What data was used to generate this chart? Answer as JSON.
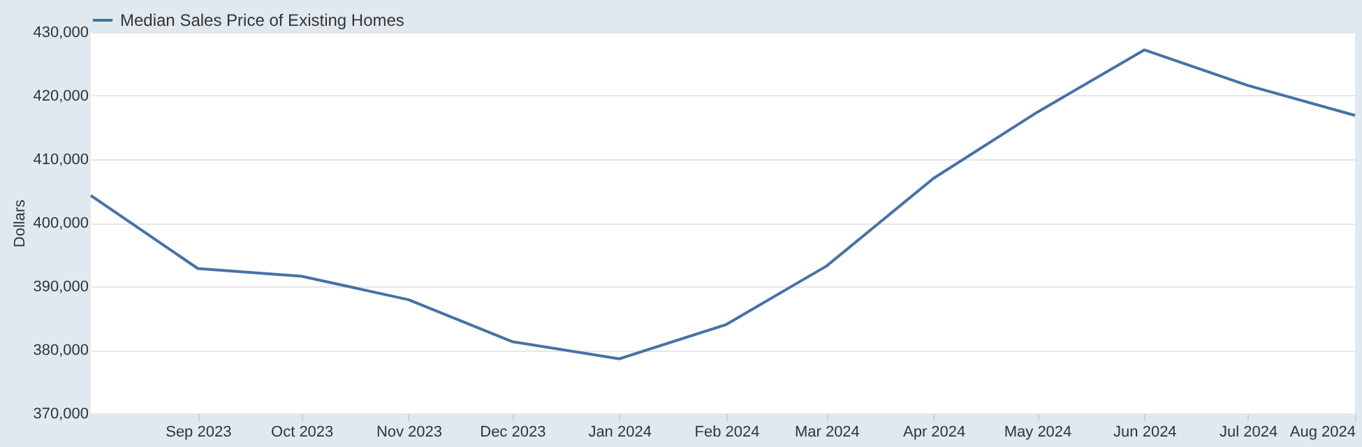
{
  "chart_data": {
    "type": "line",
    "ylabel": "Dollars",
    "x": [
      "2023-08-01",
      "2023-09-01",
      "2023-10-01",
      "2023-11-01",
      "2023-12-01",
      "2024-01-01",
      "2024-02-01",
      "2024-03-01",
      "2024-04-01",
      "2024-05-01",
      "2024-06-01",
      "2024-07-01",
      "2024-08-01"
    ],
    "series": [
      {
        "name": "Median Sales Price of Existing Homes",
        "color": "#4572a7",
        "values": [
          404300,
          392800,
          391600,
          387900,
          381300,
          378600,
          384000,
          393200,
          407000,
          417400,
          427200,
          421600,
          416900
        ]
      }
    ],
    "xlim": [
      "2023-08-01",
      "2024-08-01"
    ],
    "xticks": [
      {
        "value": "2023-09-01",
        "label": "Sep 2023"
      },
      {
        "value": "2023-10-01",
        "label": "Oct 2023"
      },
      {
        "value": "2023-11-01",
        "label": "Nov 2023"
      },
      {
        "value": "2023-12-01",
        "label": "Dec 2023"
      },
      {
        "value": "2024-01-01",
        "label": "Jan 2024"
      },
      {
        "value": "2024-02-01",
        "label": "Feb 2024"
      },
      {
        "value": "2024-03-01",
        "label": "Mar 2024"
      },
      {
        "value": "2024-04-01",
        "label": "Apr 2024"
      },
      {
        "value": "2024-05-01",
        "label": "May 2024"
      },
      {
        "value": "2024-06-01",
        "label": "Jun 2024"
      },
      {
        "value": "2024-07-01",
        "label": "Jul 2024"
      },
      {
        "value": "2024-08-01",
        "label": "Aug 2024"
      }
    ],
    "ylim": [
      370000,
      430000
    ],
    "yticks": [
      {
        "value": 370000,
        "label": "370,000"
      },
      {
        "value": 380000,
        "label": "380,000"
      },
      {
        "value": 390000,
        "label": "390,000"
      },
      {
        "value": 400000,
        "label": "400,000"
      },
      {
        "value": 410000,
        "label": "410,000"
      },
      {
        "value": 420000,
        "label": "420,000"
      },
      {
        "value": 430000,
        "label": "430,000"
      }
    ],
    "grid": "y",
    "legend": "top left",
    "marker": "none",
    "line_style": "solid"
  }
}
